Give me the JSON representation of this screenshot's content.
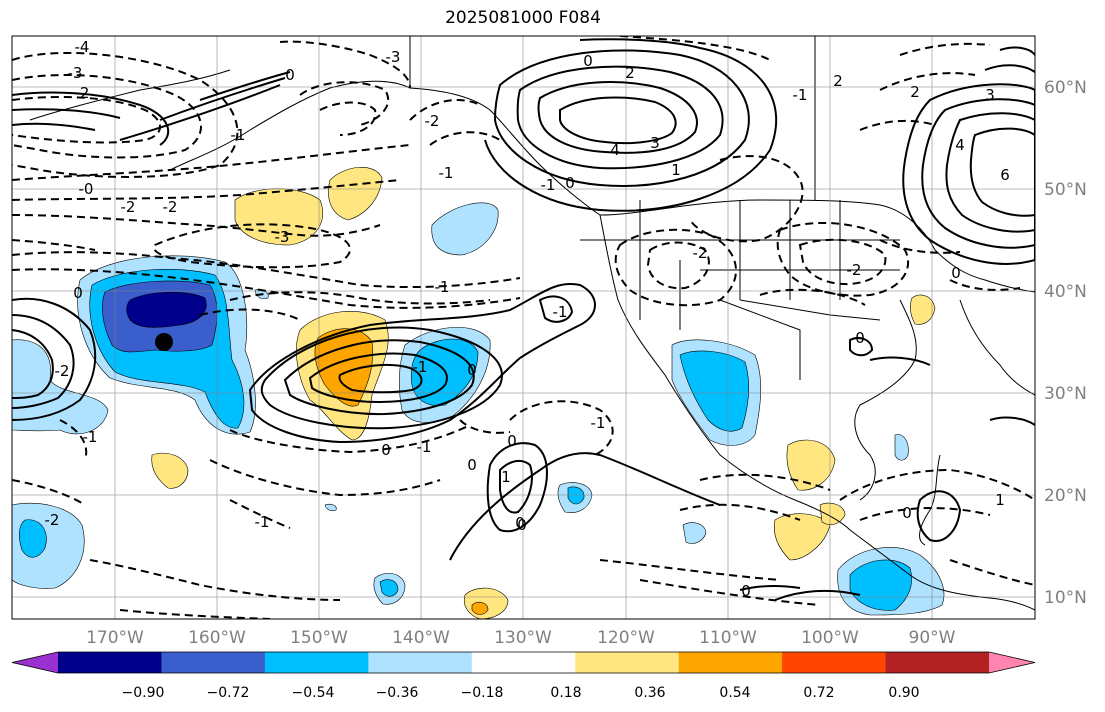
{
  "title": "2025081000 F084",
  "longitude_labels": [
    "170°W",
    "160°W",
    "150°W",
    "140°W",
    "130°W",
    "120°W",
    "110°W",
    "100°W",
    "90°W"
  ],
  "latitude_labels": [
    "60°N",
    "50°N",
    "40°N",
    "30°N",
    "20°N",
    "10°N"
  ],
  "colorbar": {
    "tick_labels": [
      "−0.90",
      "−0.72",
      "−0.54",
      "−0.36",
      "−0.18",
      "0.18",
      "0.36",
      "0.54",
      "0.72",
      "0.90"
    ],
    "colors": [
      "#9b30d0",
      "#00008b",
      "#3a5fcd",
      "#00bfff",
      "#aee2ff",
      "#ffffff",
      "#ffe680",
      "#ffa500",
      "#ff4500",
      "#b22222",
      "#ff85b0"
    ]
  },
  "contour_labels": [
    {
      "text": "-4"
    },
    {
      "text": "-3"
    },
    {
      "text": "-2"
    },
    {
      "text": "-1"
    },
    {
      "text": "0"
    },
    {
      "text": "-3"
    },
    {
      "text": "-2"
    },
    {
      "text": "-2"
    },
    {
      "text": "-0"
    },
    {
      "text": "-3"
    },
    {
      "text": "-1"
    },
    {
      "text": "0"
    },
    {
      "text": "-2"
    },
    {
      "text": "-1"
    },
    {
      "text": "0"
    },
    {
      "text": "-1"
    },
    {
      "text": "0"
    },
    {
      "text": "2"
    },
    {
      "text": "-1"
    },
    {
      "text": "4"
    },
    {
      "text": "3"
    },
    {
      "text": "-2"
    },
    {
      "text": "-1"
    },
    {
      "text": "-2"
    },
    {
      "text": "0"
    },
    {
      "text": "-2"
    },
    {
      "text": "-1"
    },
    {
      "text": "0"
    },
    {
      "text": "1"
    },
    {
      "text": "0"
    },
    {
      "text": "-1"
    },
    {
      "text": "0"
    },
    {
      "text": "-1"
    },
    {
      "text": "0"
    },
    {
      "text": "0"
    },
    {
      "text": "-1"
    },
    {
      "text": "-2"
    },
    {
      "text": "0"
    },
    {
      "text": "0"
    },
    {
      "text": "2"
    },
    {
      "text": "3"
    },
    {
      "text": "4"
    },
    {
      "text": "6"
    },
    {
      "text": "0"
    },
    {
      "text": "1"
    },
    {
      "text": "0"
    },
    {
      "text": "1"
    },
    {
      "text": "2"
    },
    {
      "text": "-1"
    }
  ],
  "marker": {
    "color": "#000000"
  }
}
